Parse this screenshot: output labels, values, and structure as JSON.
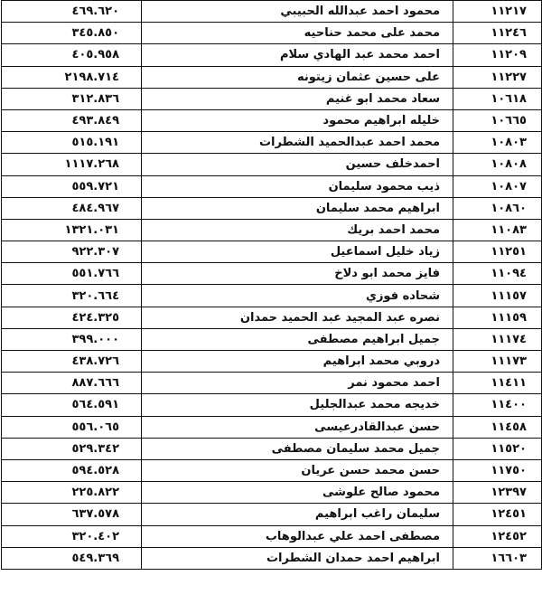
{
  "table": {
    "rows": [
      [
        "١١٢١٧",
        "محمود احمد عبدالله الحبيبي",
        "٤٦٩.٦٢٠"
      ],
      [
        "١١٢٤٦",
        "محمد على محمد حناحيه",
        "٣٤٥.٨٥٠"
      ],
      [
        "١١٢٠٩",
        "احمد محمد عبد الهادي سلام",
        "٤٠٥.٩٥٨"
      ],
      [
        "١١٢٢٧",
        "على حسين عثمان زيتونه",
        "٢١٩٨.٧١٤"
      ],
      [
        "١٠٦١٨",
        "سعاد محمد ابو غنيم",
        "٣١٢.٨٣٦"
      ],
      [
        "١٠٦٦٥",
        "خليله ابراهيم محمود",
        "٤٩٣.٨٤٩"
      ],
      [
        "١٠٨٠٣",
        "محمد احمد عبدالحميد الشطرات",
        "٥١٥.١٩١"
      ],
      [
        "١٠٨٠٨",
        "احمدخلف حسين",
        "١١١٧.٢٦٨"
      ],
      [
        "١٠٨٠٧",
        "ذيب محمود سليمان",
        "٥٥٩.٧٢١"
      ],
      [
        "١٠٨٦٠",
        "ابراهيم محمد سليمان",
        "٤٨٤.٩٦٧"
      ],
      [
        "١١٠٨٣",
        "محمد احمد بريك",
        "١٣٢١.٠٣١"
      ],
      [
        "١١٢٥١",
        "زياد خليل اسماعيل",
        "٩٢٢.٣٠٧"
      ],
      [
        "١١٠٩٤",
        "فايز محمد ابو دلاخ",
        "٥٥١.٧٦٦"
      ],
      [
        "١١١٥٧",
        "شحاده فوزي",
        "٣٢٠.٦٦٤"
      ],
      [
        "١١١٥٩",
        "نصره عبد المجيد عبد الحميد حمدان",
        "٤٢٤.٣٢٥"
      ],
      [
        "١١١٧٤",
        "جميل ابراهيم مصطفى",
        "٣٩٩.٠٠٠"
      ],
      [
        "١١١٧٣",
        "دروبي محمد ابراهيم",
        "٤٣٨.٧٢٦"
      ],
      [
        "١١٤١١",
        "احمد محمود نمر",
        "٨٨٧.٦٦٦"
      ],
      [
        "١١٤٠٠",
        "خديجه محمد عبدالجليل",
        "٥٦٤.٥٩١"
      ],
      [
        "١١٤٥٨",
        "حسن عبدالقادرعيسى",
        "٥٥٦.٠٦٥"
      ],
      [
        "١١٥٢٠",
        "جميل محمد سليمان مصطفى",
        "٥٢٩.٣٤٢"
      ],
      [
        "١١٧٥٠",
        "حسن محمد حسن عريان",
        "٥٩٤.٥٢٨"
      ],
      [
        "١٢٣٩٧",
        "محمود صالح علوشى",
        "٢٢٥.٨٢٢"
      ],
      [
        "١٢٤٥١",
        "سليمان راغب ابراهيم",
        "٦٣٧.٥٧٨"
      ],
      [
        "١٢٤٥٢",
        "مصطفى احمد علي عبدالوهاب",
        "٣٢٠.٤٠٢"
      ],
      [
        "١٦٦٠٣",
        "ابراهيم احمد حمدان الشطرات",
        "٥٤٩.٣٦٩"
      ]
    ]
  }
}
